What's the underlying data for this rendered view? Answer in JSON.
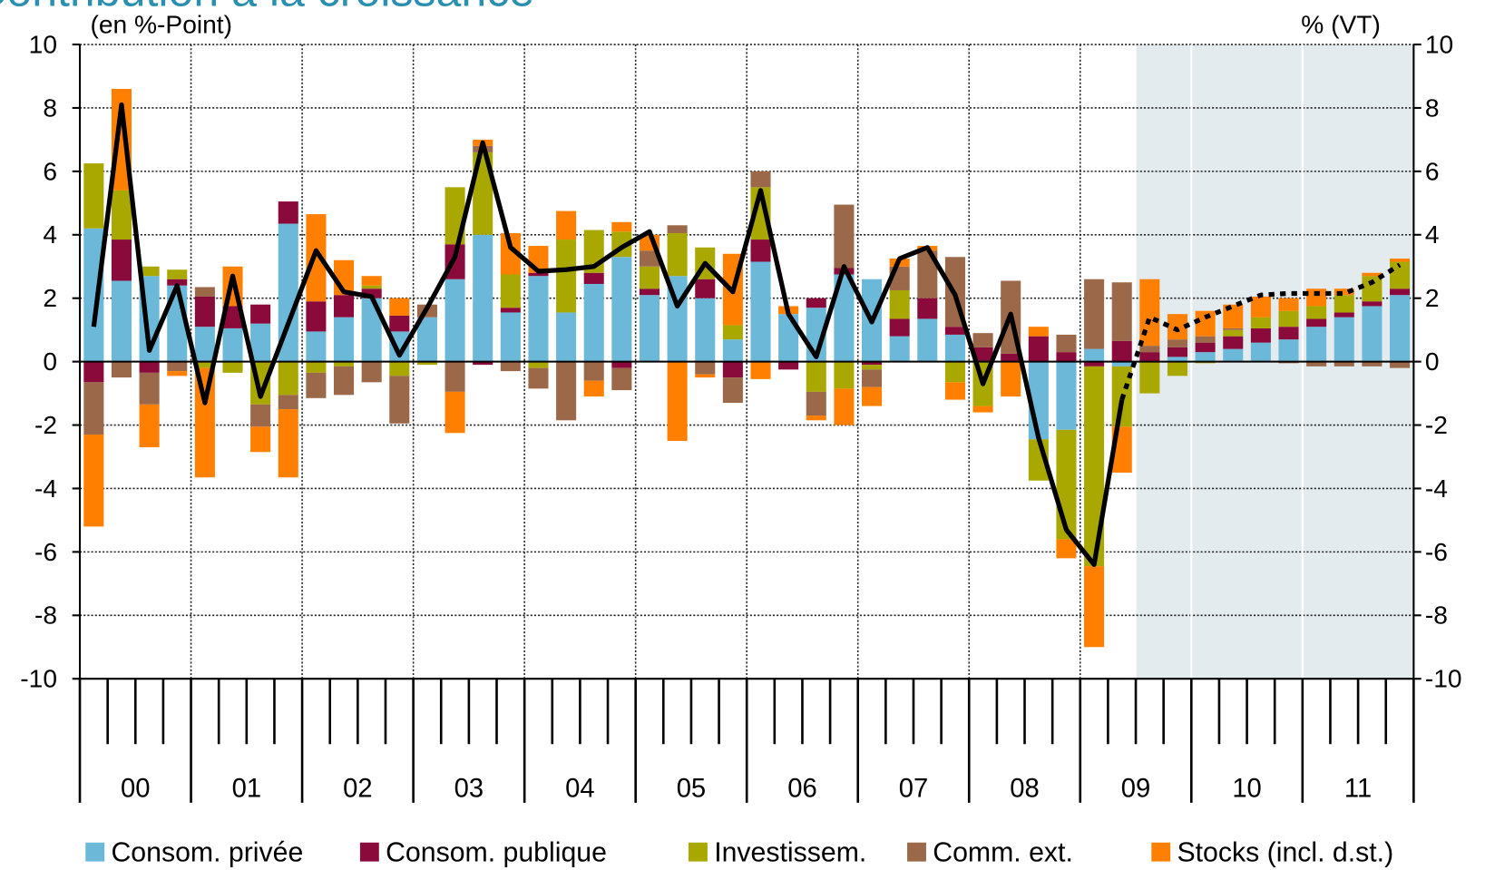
{
  "chart_data": {
    "type": "bar",
    "stacked": true,
    "title": "Contribution à la croissance",
    "y_label": "(en %-Point)",
    "y2_label": "% (VT)",
    "categories": [
      null,
      null,
      null,
      null,
      null,
      null,
      null,
      null,
      null,
      null,
      null,
      null,
      null,
      null,
      null,
      null,
      null,
      null,
      null,
      null,
      null,
      null,
      null,
      null,
      null,
      null,
      null,
      null,
      null,
      null,
      null,
      null,
      null,
      null,
      null,
      null,
      null,
      null,
      null,
      null,
      null,
      null,
      null,
      null,
      null,
      null,
      null,
      null
    ],
    "year_labels": [
      "00",
      "01",
      "02",
      "03",
      "04",
      "05",
      "06",
      "07",
      "08",
      "09",
      "10",
      "11"
    ],
    "ylim": [
      -10,
      10
    ],
    "yticks": [
      -10,
      -8,
      -6,
      -4,
      -2,
      0,
      2,
      4,
      6,
      8,
      10
    ],
    "y2lim": [
      -10,
      10
    ],
    "y2ticks": [
      -10,
      -8,
      -6,
      -4,
      -2,
      0,
      2,
      4,
      6,
      8,
      10
    ],
    "grid": true,
    "legend": "bottom",
    "series": [
      {
        "name": "Consom. privée",
        "color": "#6cb8d8",
        "values": [
          4.2,
          2.55,
          2.7,
          2.4,
          1.1,
          1.05,
          1.2,
          4.35,
          0.95,
          1.4,
          2.0,
          0.95,
          1.4,
          2.6,
          4.0,
          1.55,
          2.7,
          1.55,
          2.45,
          3.3,
          2.1,
          2.7,
          2.0,
          0.7,
          3.15,
          1.5,
          1.7,
          2.75,
          2.6,
          0.8,
          1.35,
          0.85,
          0,
          0,
          -2.45,
          -2.15,
          0.4,
          -0.15,
          0,
          0.15,
          0.3,
          0.4,
          0.6,
          0.7,
          1.1,
          1.4,
          1.75,
          2.1
        ]
      },
      {
        "name": "Consom. publique",
        "color": "#8b0a3c",
        "values": [
          -0.65,
          1.3,
          -0.35,
          0.2,
          0.95,
          0.7,
          0.6,
          0.7,
          0.95,
          0.7,
          0.3,
          0.5,
          0,
          1.1,
          -0.1,
          0.15,
          0.1,
          0,
          0.35,
          -0.2,
          0.2,
          0,
          0.6,
          -0.5,
          0.7,
          -0.25,
          0.3,
          0.2,
          -0.1,
          0.55,
          0.65,
          0.25,
          0.45,
          0.25,
          0.8,
          0.3,
          -0.15,
          0.65,
          0.3,
          0.3,
          0.3,
          0.4,
          0.45,
          0.4,
          0.25,
          0.15,
          0.15,
          0.2
        ]
      },
      {
        "name": "Investissem.",
        "color": "#a9a800",
        "values": [
          2.05,
          1.55,
          0.3,
          0.3,
          -0.2,
          -0.35,
          -1.35,
          -1.05,
          -0.35,
          -0.15,
          0.1,
          -0.45,
          -0.1,
          1.8,
          2.6,
          1.05,
          -0.2,
          2.3,
          1.35,
          0.8,
          0.7,
          1.35,
          1.0,
          0.45,
          1.65,
          0,
          -0.95,
          -0.85,
          -0.15,
          0.9,
          0,
          -0.65,
          -1.4,
          0,
          -1.3,
          -3.45,
          -6.3,
          -1.9,
          -1.0,
          -0.45,
          -0.05,
          0.2,
          0.35,
          0.5,
          0.4,
          0.55,
          0.8,
          0.85
        ]
      },
      {
        "name": "Comm. ext.",
        "color": "#9b6849",
        "values": [
          -1.65,
          -0.5,
          -1.0,
          -0.3,
          0.3,
          0,
          -0.7,
          -0.45,
          -0.8,
          -0.9,
          -0.65,
          -1.5,
          0.4,
          -0.95,
          0.2,
          -0.3,
          -0.65,
          -1.85,
          -0.6,
          -0.7,
          0.5,
          0.25,
          -0.4,
          -0.8,
          0.5,
          0,
          -0.75,
          2.0,
          -0.55,
          0.75,
          1.5,
          2.2,
          0.45,
          2.3,
          0,
          0.55,
          2.2,
          1.85,
          0.2,
          0.25,
          0.2,
          0.05,
          0,
          -0.05,
          -0.15,
          -0.15,
          -0.15,
          -0.2
        ]
      },
      {
        "name": "Stocks (incl. d.st.)",
        "color": "#ff8000",
        "values": [
          -2.9,
          3.2,
          -1.35,
          -0.15,
          -3.45,
          1.25,
          -0.8,
          -2.15,
          2.75,
          1.1,
          0.3,
          0.55,
          0,
          -1.3,
          0.2,
          1.3,
          0.85,
          0.9,
          -0.5,
          0.3,
          0.5,
          -2.5,
          -0.1,
          2.25,
          -0.55,
          0.25,
          -0.15,
          -1.15,
          -0.6,
          0.25,
          0.15,
          -0.55,
          -0.2,
          -1.1,
          0.3,
          -0.6,
          -2.55,
          -1.45,
          2.1,
          0.8,
          0.8,
          0.75,
          0.65,
          0.4,
          0.55,
          0.2,
          0.1,
          0.1
        ]
      }
    ],
    "line_color": "#000000",
    "line_values": [
      1.1,
      8.1,
      0.35,
      2.4,
      -1.3,
      2.7,
      -1.1,
      1.2,
      3.5,
      2.2,
      2.05,
      0.2,
      1.7,
      3.3,
      6.9,
      3.6,
      2.85,
      2.9,
      3.0,
      3.6,
      4.1,
      1.75,
      3.1,
      2.2,
      5.4,
      1.5,
      0.15,
      3.0,
      1.25,
      3.25,
      3.6,
      2.1,
      -0.7,
      1.5,
      -2.4,
      -5.3,
      -6.4,
      -1.2,
      null,
      null,
      null,
      null,
      null,
      null,
      null,
      null,
      null,
      null
    ],
    "forecast_values": [
      null,
      null,
      null,
      null,
      null,
      null,
      null,
      null,
      null,
      null,
      null,
      null,
      null,
      null,
      null,
      null,
      null,
      null,
      null,
      null,
      null,
      null,
      null,
      null,
      null,
      null,
      null,
      null,
      null,
      null,
      null,
      null,
      null,
      null,
      null,
      null,
      null,
      -1.2,
      1.4,
      1.0,
      1.4,
      1.75,
      2.1,
      2.15,
      2.15,
      2.15,
      2.5,
      3.05
    ]
  }
}
